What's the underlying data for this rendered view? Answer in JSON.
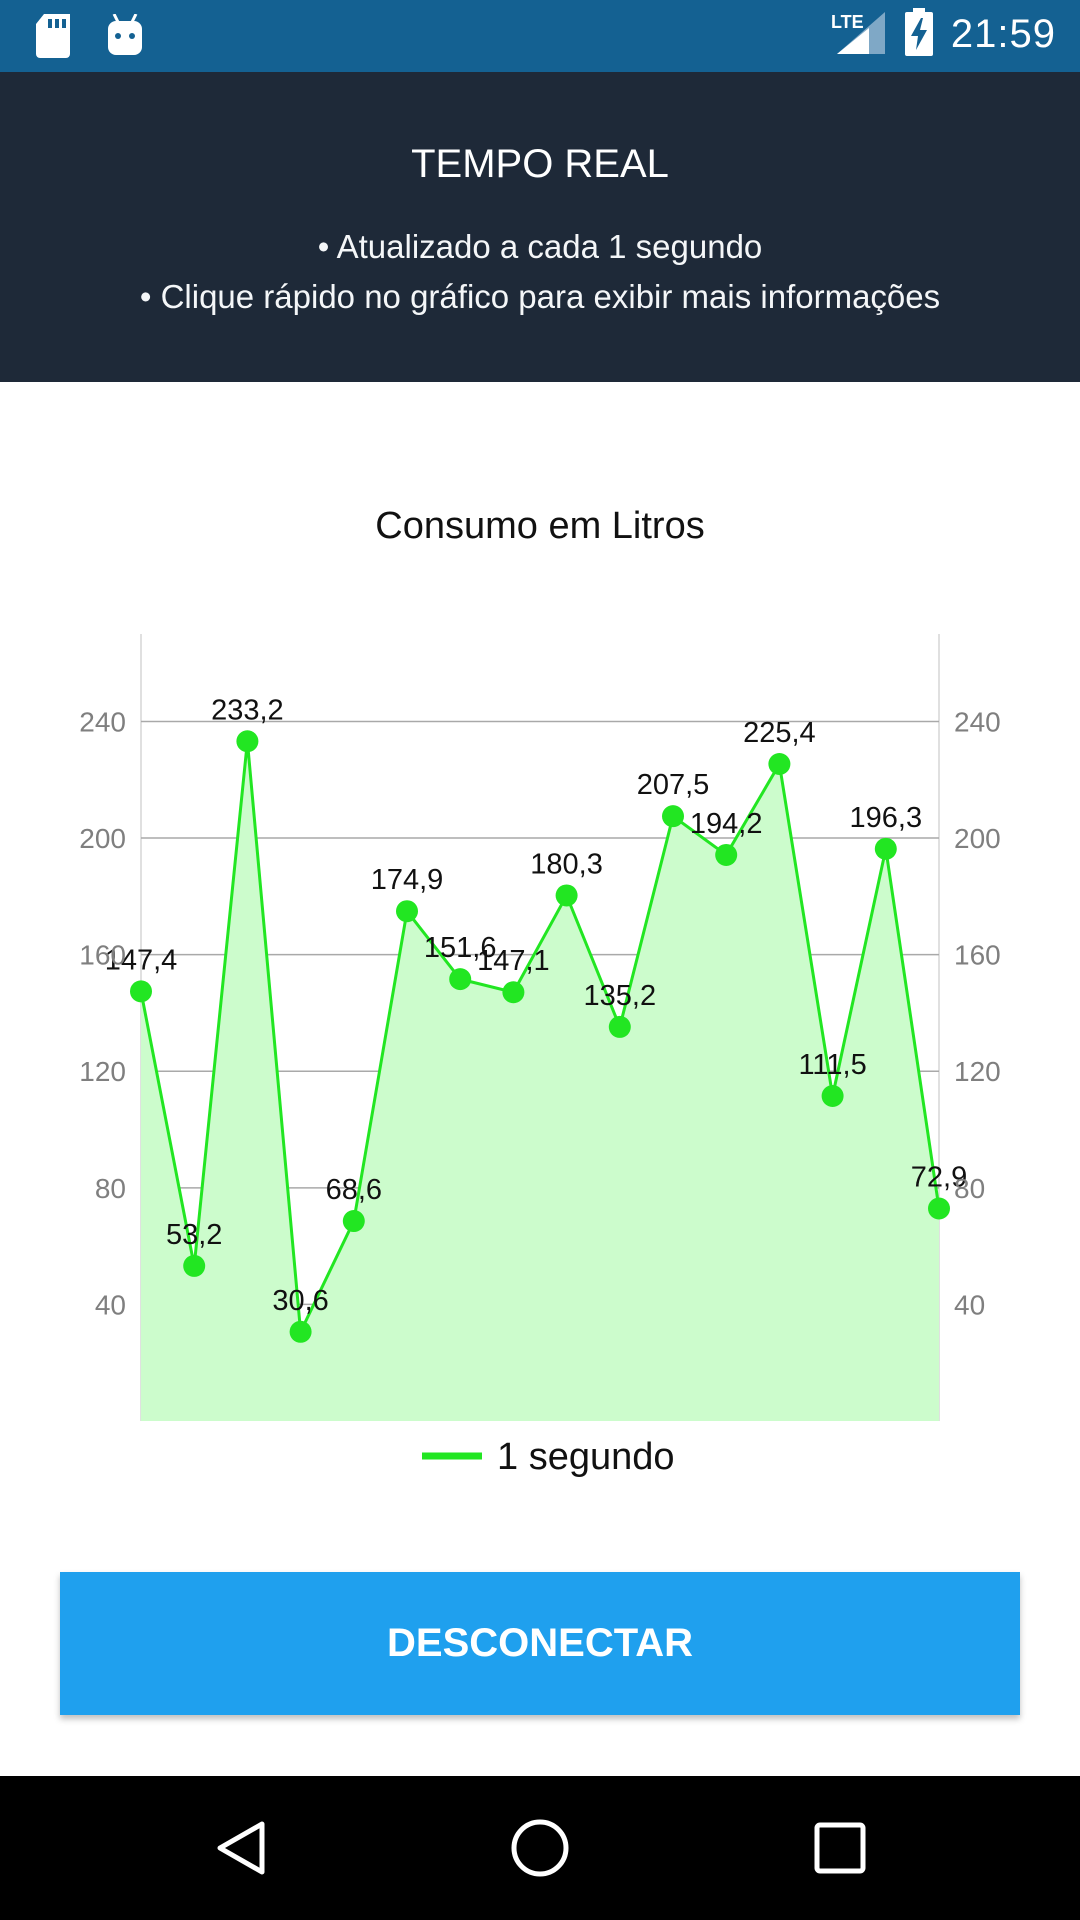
{
  "status_bar": {
    "time": "21:59",
    "network": "LTE",
    "icons": [
      "sd-card-icon",
      "android-debug-icon",
      "lte-signal-icon",
      "battery-charging-icon"
    ]
  },
  "header": {
    "title": "TEMPO REAL",
    "line1": "• Atualizado a cada 1 segundo",
    "line2": "• Clique rápido no gráfico para exibir mais informações"
  },
  "chart": {
    "title": "Consumo em Litros",
    "legend_label": "1 segundo",
    "colors": {
      "line": "#22e622",
      "fill": "#ccfccc",
      "grid": "#a9a9a9",
      "tick": "#7f7f7f"
    }
  },
  "chart_data": {
    "type": "line",
    "title": "Consumo em Litros",
    "series": [
      {
        "name": "1 segundo",
        "values": [
          147.4,
          53.2,
          233.2,
          30.6,
          68.6,
          174.9,
          151.6,
          147.1,
          180.3,
          135.2,
          207.5,
          194.2,
          225.4,
          111.5,
          196.3,
          72.9
        ],
        "labels": [
          "147,4",
          "53,2",
          "233,2",
          "30,6",
          "68,6",
          "174,9",
          "151,6",
          "147,1",
          "180,3",
          "135,2",
          "207,5",
          "194,2",
          "225,4",
          "111,5",
          "196,3",
          "72,9"
        ]
      }
    ],
    "y_ticks": [
      "40",
      "80",
      "120",
      "160",
      "200",
      "240"
    ],
    "ylim": [
      0,
      270
    ],
    "grid": true,
    "filled_area": true,
    "dual_y_axis": true,
    "legend_position": "bottom-center"
  },
  "actions": {
    "disconnect_label": "DESCONECTAR"
  },
  "nav_bar": {
    "icons": [
      "back-icon",
      "home-icon",
      "recents-icon"
    ]
  }
}
